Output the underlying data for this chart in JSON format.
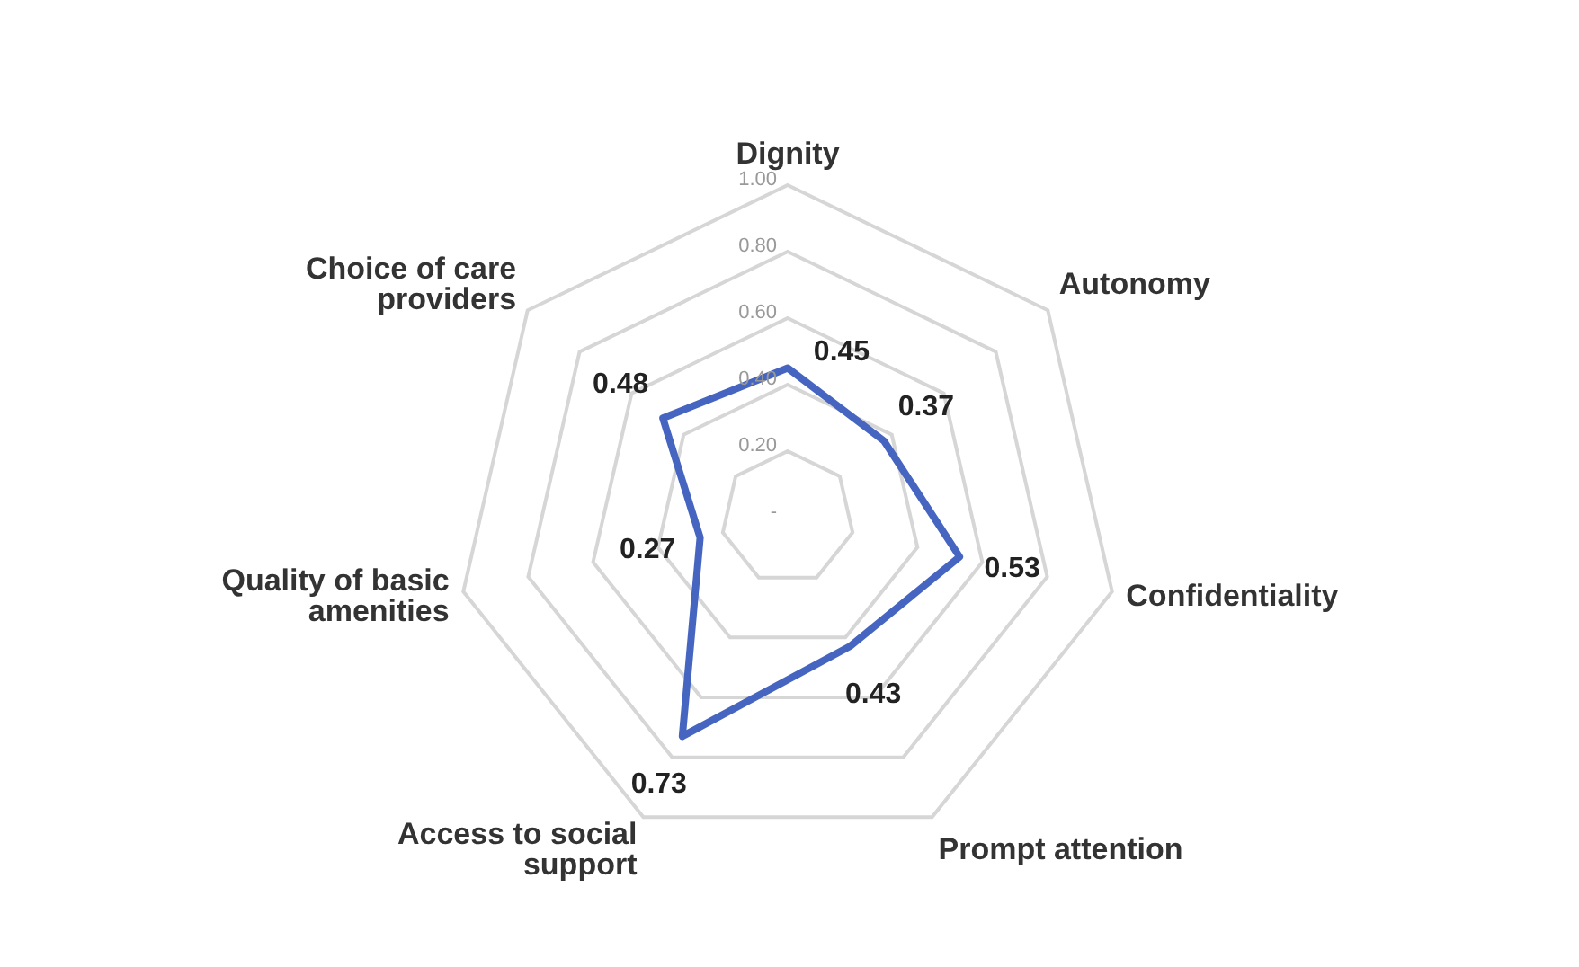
{
  "chart_data": {
    "type": "radar",
    "categories": [
      "Dignity",
      "Autonomy",
      "Confidentiality",
      "Prompt attention",
      "Access to social support",
      "Quality of basic amenities",
      "Choice of care providers"
    ],
    "series": [
      {
        "color": "#4565c0",
        "values": [
          0.45,
          0.37,
          0.53,
          0.43,
          0.73,
          0.27,
          0.48
        ]
      }
    ],
    "ylim": [
      0,
      1
    ],
    "yticks": [
      {
        "value": 0,
        "label": "-"
      },
      {
        "value": 0.2,
        "label": "0.20"
      },
      {
        "value": 0.4,
        "label": "0.40"
      },
      {
        "value": 0.6,
        "label": "0.60"
      },
      {
        "value": 0.8,
        "label": "0.80"
      },
      {
        "value": 1,
        "label": "1.00"
      }
    ],
    "grid": true,
    "data_labels": true,
    "marker": "none",
    "legend": false
  }
}
